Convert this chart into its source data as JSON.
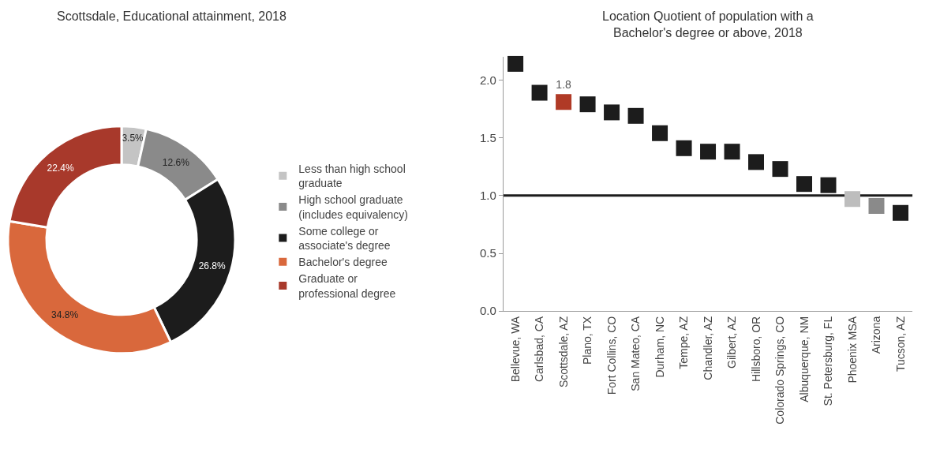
{
  "chart_data": [
    {
      "type": "donut",
      "title": "Scottsdale, Educational attainment, 2018",
      "categories": [
        "Less than high school graduate",
        "High school graduate (includes equivalency)",
        "Some college or associate's degree",
        "Bachelor's degree",
        "Graduate or professional degree"
      ],
      "values": [
        3.5,
        12.6,
        26.8,
        34.8,
        22.4
      ],
      "colors": [
        "#c4c4c4",
        "#8a8a8a",
        "#1c1c1c",
        "#d9683c",
        "#a8392b"
      ],
      "value_labels": [
        "3.5%",
        "12.6%",
        "26.8%",
        "34.8%",
        "22.4%"
      ],
      "legend": "right"
    },
    {
      "type": "scatter",
      "title": "Location Quotient of population with a Bachelor's degree or above, 2018",
      "categories": [
        "Bellevue, WA",
        "Carlsbad, CA",
        "Scottsdale, AZ",
        "Plano, TX",
        "Fort Collins, CO",
        "San Mateo, CA",
        "Durham, NC",
        "Tempe, AZ",
        "Chandler, AZ",
        "Gilbert, AZ",
        "Hillsboro, OR",
        "Colorado Springs, CO",
        "Albuquerque, NM",
        "St. Petersburg, FL",
        "Phoenix MSA",
        "Arizona",
        "Tucson, AZ"
      ],
      "values": [
        2.14,
        1.89,
        1.81,
        1.79,
        1.72,
        1.69,
        1.54,
        1.41,
        1.38,
        1.38,
        1.29,
        1.23,
        1.1,
        1.09,
        0.97,
        0.91,
        0.85
      ],
      "colors": [
        "#1c1c1c",
        "#1c1c1c",
        "#b03a26",
        "#1c1c1c",
        "#1c1c1c",
        "#1c1c1c",
        "#1c1c1c",
        "#1c1c1c",
        "#1c1c1c",
        "#1c1c1c",
        "#1c1c1c",
        "#1c1c1c",
        "#1c1c1c",
        "#1c1c1c",
        "#bdbdbd",
        "#8a8a8a",
        "#1c1c1c"
      ],
      "value_labels": [
        null,
        null,
        "1.8",
        null,
        null,
        null,
        null,
        null,
        null,
        null,
        null,
        null,
        null,
        null,
        null,
        null,
        null
      ],
      "marker": "square",
      "ylim": [
        0,
        2.2
      ],
      "yticks": [
        {
          "value": 0,
          "label": "0.0"
        },
        {
          "value": 0.5,
          "label": "0.5"
        },
        {
          "value": 1,
          "label": "1.0"
        },
        {
          "value": 1.5,
          "label": "1.5"
        },
        {
          "value": 2,
          "label": "2.0"
        }
      ],
      "ref_lines": [
        {
          "axis": "y",
          "value": 1,
          "color": "#1c1c1c"
        }
      ],
      "grid": false
    }
  ]
}
